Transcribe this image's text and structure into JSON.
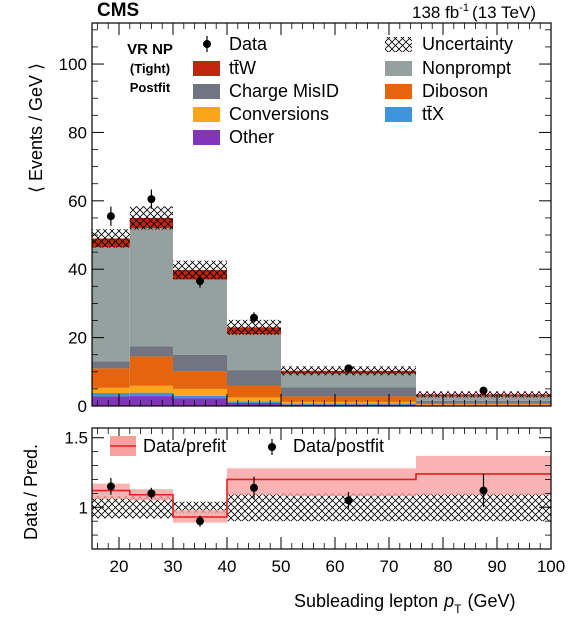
{
  "header": {
    "experiment": "CMS",
    "lumi": "138 fb",
    "lumi_exp": "-1",
    "energy": "(13 TeV)"
  },
  "region": {
    "line1": "VR NP",
    "line2": "(Tight)",
    "line3": "Postfit"
  },
  "colors": {
    "ttW": "#c0250d",
    "charge_misid": "#717581",
    "conversions": "#f9a718",
    "other": "#8235b8",
    "nonprompt": "#95a19e",
    "diboson": "#e5650e",
    "ttX": "#3e95dc",
    "prefit_band": "#f8a0a0",
    "prefit_line": "#e02020"
  },
  "chart_data": [
    {
      "type": "bar",
      "panel": "main",
      "stacked": true,
      "ylabel": "⟨ Events / GeV ⟩",
      "xlim": [
        15,
        100
      ],
      "ylim": [
        0,
        112
      ],
      "yticks": [
        0,
        20,
        40,
        60,
        80,
        100
      ],
      "bin_edges": [
        15,
        22,
        30,
        40,
        50,
        75,
        100
      ],
      "series": [
        {
          "name": "Other",
          "key": "other",
          "values": [
            2.8,
            2.9,
            2.2,
            0.9,
            0.4,
            0.2
          ]
        },
        {
          "name": "tt̄X",
          "key": "ttX",
          "values": [
            1.0,
            1.0,
            0.8,
            0.4,
            0.3,
            0.1
          ]
        },
        {
          "name": "Conversions",
          "key": "conversions",
          "values": [
            1.5,
            2.0,
            2.0,
            1.2,
            0.5,
            0.2
          ]
        },
        {
          "name": "Diboson",
          "key": "diboson",
          "values": [
            5.7,
            8.6,
            5.0,
            3.5,
            1.6,
            0.4
          ]
        },
        {
          "name": "Charge MisID",
          "key": "charge_misid",
          "values": [
            2.0,
            3.0,
            5.0,
            4.5,
            2.7,
            0.6
          ]
        },
        {
          "name": "Nonprompt",
          "key": "nonprompt",
          "values": [
            33.5,
            34.5,
            22.0,
            10.5,
            4.0,
            1.3
          ]
        },
        {
          "name": "tt̄W",
          "key": "ttW",
          "values": [
            2.5,
            3.0,
            2.8,
            2.0,
            0.8,
            0.6
          ]
        }
      ],
      "uncertainty": {
        "name": "Uncertainty",
        "values": [
          2.7,
          3.4,
          2.7,
          2.2,
          1.3,
          0.9
        ]
      },
      "data": {
        "name": "Data",
        "x": [
          18.5,
          26,
          35,
          45,
          62.5,
          87.5
        ],
        "y": [
          55.5,
          60.5,
          36.5,
          25.8,
          11.0,
          4.5
        ],
        "err": [
          2.8,
          2.8,
          1.9,
          1.6,
          0.7,
          0.4
        ]
      },
      "legend_left": [
        "Data",
        "tt̄W",
        "Charge MisID",
        "Conversions",
        "Other"
      ],
      "legend_right": [
        "Uncertainty",
        "Nonprompt",
        "Diboson",
        "tt̄X"
      ]
    },
    {
      "type": "line",
      "panel": "ratio",
      "ylabel": "Data / Pred.",
      "xlabel": "Subleading lepton",
      "xlabel_var": "p",
      "xlabel_sub": "T",
      "xlabel_unit": "(GeV)",
      "xlim": [
        15,
        100
      ],
      "ylim": [
        0.7,
        1.57
      ],
      "yticks": [
        1,
        1.5
      ],
      "ytick_labels": [
        "1",
        "1.5"
      ],
      "xticks": [
        20,
        30,
        40,
        50,
        60,
        70,
        80,
        90,
        100
      ],
      "bin_edges": [
        15,
        22,
        30,
        40,
        50,
        75,
        100
      ],
      "postfit_band": {
        "lo": [
          0.92,
          0.92,
          0.96,
          0.9,
          0.9,
          0.9
        ],
        "hi": [
          1.08,
          1.08,
          1.04,
          1.1,
          1.1,
          1.1
        ]
      },
      "prefit": {
        "name": "Data/prefit",
        "values": [
          1.12,
          1.09,
          0.93,
          1.2,
          1.2,
          1.24
        ],
        "band_lo": [
          1.06,
          1.05,
          0.89,
          1.09,
          1.08,
          1.09
        ],
        "band_hi": [
          1.17,
          1.13,
          0.98,
          1.28,
          1.28,
          1.37
        ]
      },
      "postfit": {
        "name": "Data/postfit",
        "x": [
          18.5,
          26,
          35,
          45,
          62.5,
          87.5
        ],
        "y": [
          1.15,
          1.1,
          0.9,
          1.14,
          1.05,
          1.12
        ],
        "err": [
          0.06,
          0.04,
          0.04,
          0.08,
          0.06,
          0.12
        ]
      }
    }
  ]
}
